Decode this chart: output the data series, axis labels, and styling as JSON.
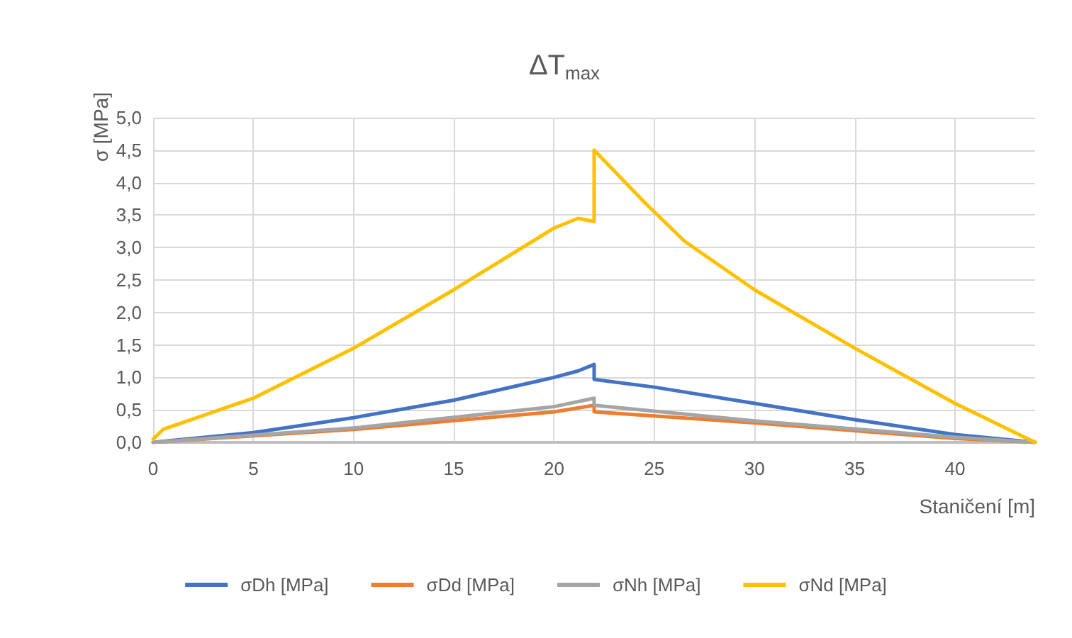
{
  "chart_data": {
    "type": "line",
    "title": "ΔT$_{max}$",
    "xlabel": "Staničení [m]",
    "ylabel": "σ [MPa]",
    "xlim": [
      0,
      44
    ],
    "xticks": [
      0,
      5,
      10,
      15,
      20,
      25,
      30,
      35,
      40
    ],
    "ylim": [
      0,
      5
    ],
    "yticks": [
      {
        "value": 0,
        "label": "0,0"
      },
      {
        "value": 0.5,
        "label": "0,5"
      },
      {
        "value": 1,
        "label": "1,0"
      },
      {
        "value": 1.5,
        "label": "1,5"
      },
      {
        "value": 2,
        "label": "2,0"
      },
      {
        "value": 2.5,
        "label": "2,5"
      },
      {
        "value": 3,
        "label": "3,0"
      },
      {
        "value": 3.5,
        "label": "3,5"
      },
      {
        "value": 4,
        "label": "4,0"
      },
      {
        "value": 4.5,
        "label": "4,5"
      },
      {
        "value": 5,
        "label": "5,0"
      }
    ],
    "grid": true,
    "legend": "bottom",
    "marker": "none",
    "line_style": "solid",
    "series": [
      {
        "name": "σDh [MPa]",
        "color": "#4472c4",
        "x": [
          0,
          5,
          10,
          15,
          20,
          21.2,
          22,
          22,
          25,
          30,
          35,
          40,
          44
        ],
        "values": [
          0,
          0.15,
          0.38,
          0.65,
          1.0,
          1.1,
          1.2,
          0.97,
          0.85,
          0.6,
          0.35,
          0.12,
          0
        ]
      },
      {
        "name": "σDd [MPa]",
        "color": "#ed7d31",
        "x": [
          0,
          10,
          20,
          22,
          22,
          30,
          40,
          44
        ],
        "values": [
          0,
          0.2,
          0.47,
          0.57,
          0.47,
          0.3,
          0.06,
          0
        ]
      },
      {
        "name": "σNh [MPa]",
        "color": "#a5a5a5",
        "x": [
          0,
          10,
          20,
          22,
          22,
          30,
          40,
          44
        ],
        "values": [
          0,
          0.22,
          0.55,
          0.68,
          0.57,
          0.33,
          0.08,
          0
        ]
      },
      {
        "name": "σNd [MPa]",
        "color": "#ffc000",
        "x": [
          0,
          0.5,
          5,
          10,
          15,
          20,
          21.2,
          22,
          22,
          24.5,
          26.5,
          30,
          35,
          40,
          44
        ],
        "values": [
          0.05,
          0.2,
          0.68,
          1.45,
          2.35,
          3.3,
          3.45,
          3.4,
          4.5,
          3.7,
          3.1,
          2.35,
          1.45,
          0.6,
          0
        ]
      }
    ]
  }
}
